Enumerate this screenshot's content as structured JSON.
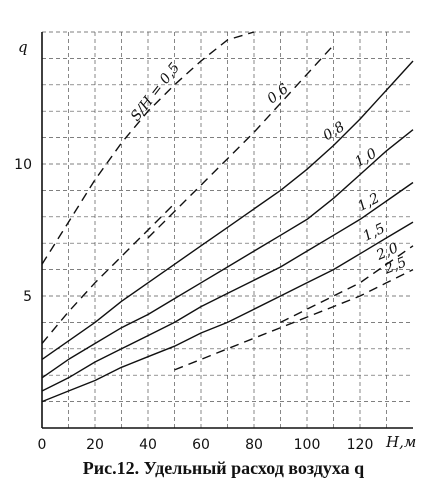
{
  "caption": "Рис.12. Удельный расход воздуха q",
  "chart_data": {
    "type": "line",
    "title": "",
    "ylabel": "q",
    "xlabel": "H,м",
    "xlim": [
      0,
      140
    ],
    "ylim": [
      0,
      15
    ],
    "x_ticks": [
      "0",
      "20",
      "40",
      "60",
      "80",
      "100",
      "120"
    ],
    "y_ticks": [
      "5",
      "10"
    ],
    "grid": "dashed",
    "series": [
      {
        "name": "S/H = 0,5",
        "label": "S/H = 0,5",
        "style": "dashed",
        "x": [
          0,
          10,
          20,
          30,
          40,
          50,
          60,
          70,
          80
        ],
        "y": [
          6.2,
          7.8,
          9.4,
          10.8,
          12.0,
          13.0,
          13.9,
          14.7,
          15.0
        ]
      },
      {
        "name": "S/H = 0,5",
        "label": "",
        "style": "dashed",
        "x": [
          0,
          10,
          20,
          30,
          40,
          50
        ],
        "y": [
          3.2,
          4.4,
          5.5,
          6.5,
          7.5,
          8.5
        ]
      },
      {
        "name": "0,6",
        "label": "0,6",
        "style": "dashed",
        "x": [
          40,
          50,
          60,
          70,
          80,
          90,
          100,
          110
        ],
        "y": [
          7.2,
          8.2,
          9.2,
          10.2,
          11.2,
          12.3,
          13.4,
          14.5
        ]
      },
      {
        "name": "0,8",
        "label": "0,8",
        "style": "solid",
        "x": [
          0,
          10,
          20,
          30,
          40,
          50,
          60,
          70,
          80,
          90,
          100,
          110,
          120,
          130,
          140
        ],
        "y": [
          2.6,
          3.3,
          4.0,
          4.8,
          5.5,
          6.2,
          6.9,
          7.6,
          8.3,
          9.0,
          9.8,
          10.7,
          11.7,
          12.8,
          13.9
        ]
      },
      {
        "name": "1,0",
        "label": "1,0",
        "style": "solid",
        "x": [
          0,
          10,
          20,
          30,
          40,
          50,
          60,
          70,
          80,
          90,
          100,
          110,
          120,
          130,
          140
        ],
        "y": [
          1.9,
          2.6,
          3.2,
          3.8,
          4.3,
          4.9,
          5.5,
          6.1,
          6.7,
          7.3,
          7.9,
          8.7,
          9.6,
          10.5,
          11.3
        ]
      },
      {
        "name": "1,2",
        "label": "1,2",
        "style": "solid",
        "x": [
          0,
          10,
          20,
          30,
          40,
          50,
          60,
          70,
          80,
          90,
          100,
          110,
          120,
          130,
          140
        ],
        "y": [
          1.4,
          1.9,
          2.5,
          3.0,
          3.5,
          4.0,
          4.6,
          5.1,
          5.6,
          6.1,
          6.7,
          7.3,
          7.9,
          8.6,
          9.3
        ]
      },
      {
        "name": "1,5",
        "label": "1,5",
        "style": "solid",
        "x": [
          0,
          10,
          20,
          30,
          40,
          50,
          60,
          70,
          80,
          90,
          100,
          110,
          120,
          130,
          140
        ],
        "y": [
          1.0,
          1.4,
          1.8,
          2.3,
          2.7,
          3.1,
          3.6,
          4.0,
          4.5,
          5.0,
          5.5,
          6.0,
          6.6,
          7.2,
          7.8
        ]
      },
      {
        "name": "2,0",
        "label": "2,0",
        "style": "dashed",
        "x": [
          90,
          100,
          110,
          120,
          130,
          140
        ],
        "y": [
          4.0,
          4.5,
          5.0,
          5.5,
          6.2,
          6.9
        ]
      },
      {
        "name": "2,5",
        "label": "2,5",
        "style": "dashed",
        "x": [
          50,
          60,
          70,
          80,
          90,
          100,
          110,
          120,
          130,
          140
        ],
        "y": [
          2.2,
          2.6,
          3.0,
          3.4,
          3.8,
          4.2,
          4.6,
          5.0,
          5.5,
          6.0
        ]
      }
    ]
  }
}
